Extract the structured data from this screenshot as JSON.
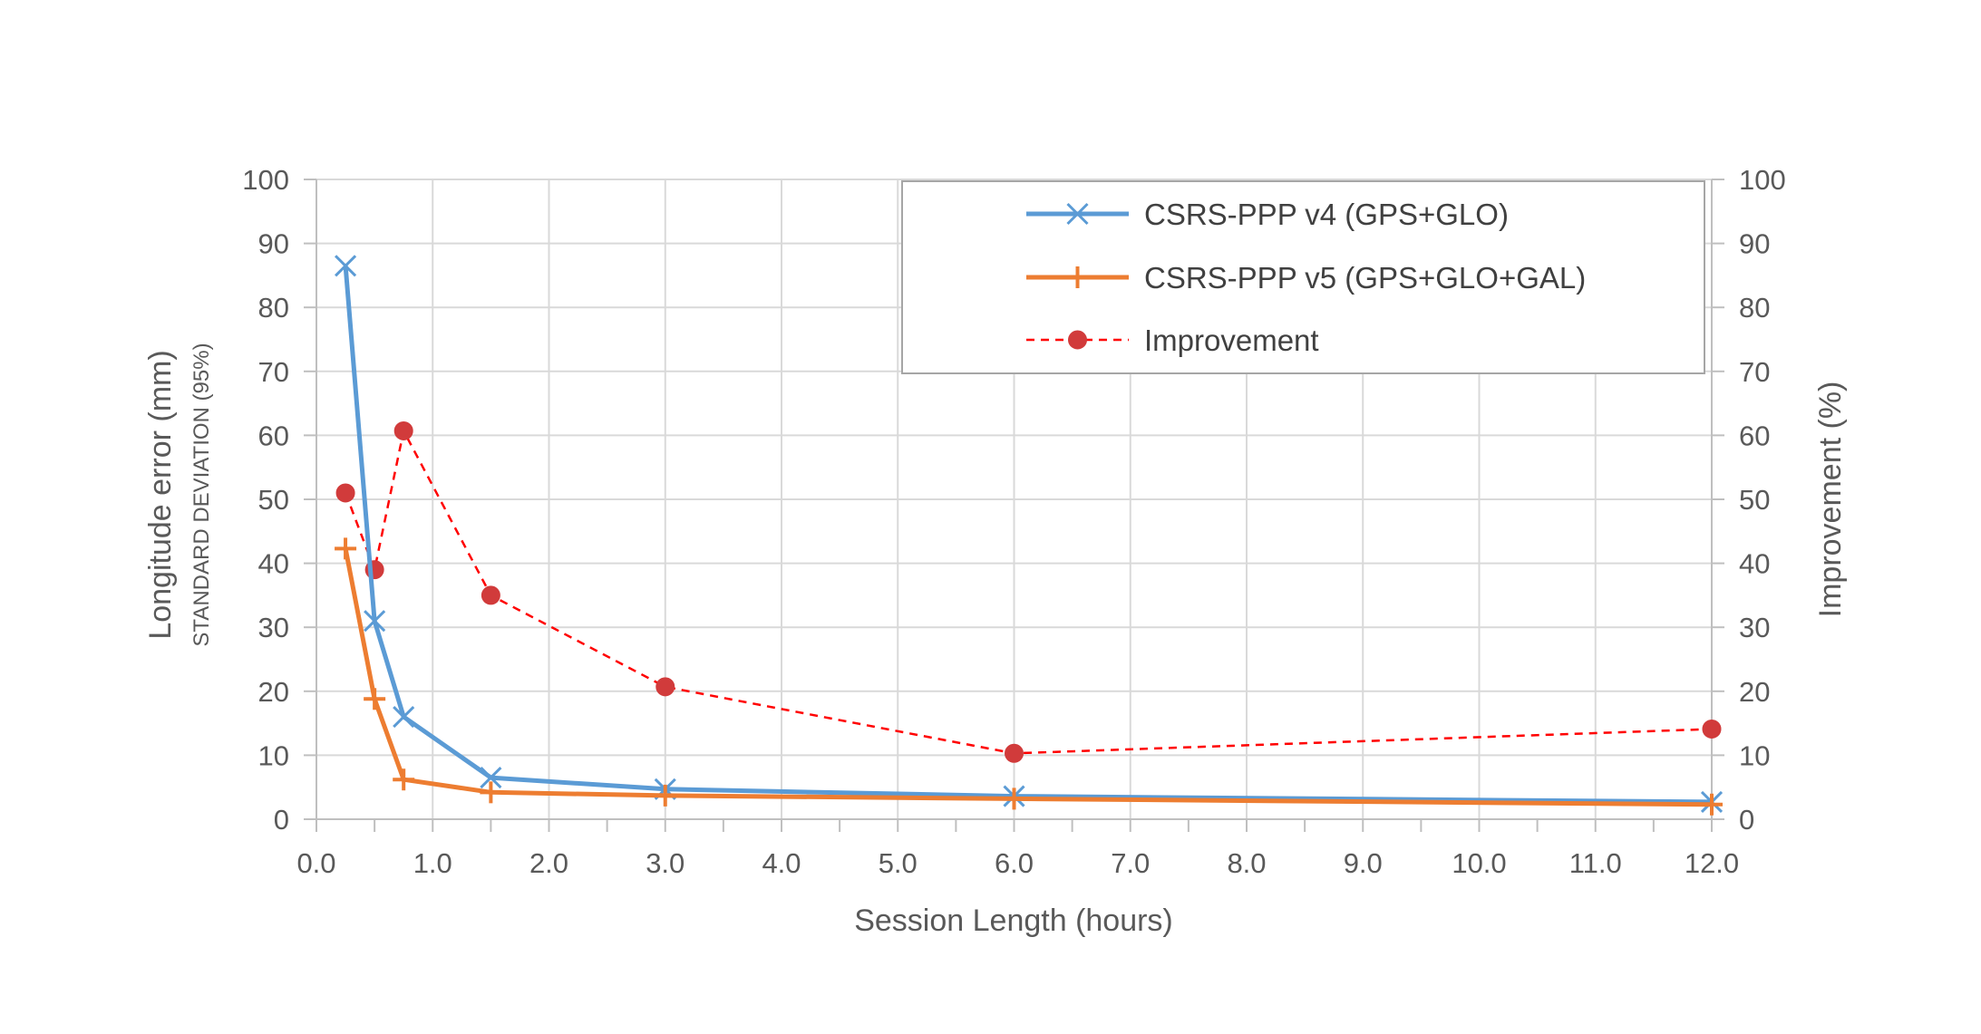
{
  "chart_data": {
    "type": "line",
    "xlabel": "Session Length (hours)",
    "ylabel": "Longitude error (mm)",
    "ylabel_sub": "STANDARD DEVIATION (95%)",
    "y2label": "Improvement (%)",
    "xlim": [
      0,
      12
    ],
    "ylim": [
      0,
      100
    ],
    "y2lim": [
      0,
      100
    ],
    "x_ticks": [
      "0.0",
      "1.0",
      "2.0",
      "3.0",
      "4.0",
      "5.0",
      "6.0",
      "7.0",
      "8.0",
      "9.0",
      "10.0",
      "11.0",
      "12.0"
    ],
    "y_ticks": [
      "0",
      "10",
      "20",
      "30",
      "40",
      "50",
      "60",
      "70",
      "80",
      "90",
      "100"
    ],
    "y2_ticks": [
      "0",
      "10",
      "20",
      "30",
      "40",
      "50",
      "60",
      "70",
      "80",
      "90",
      "100"
    ],
    "grid": true,
    "legend_position": "top-right",
    "series": [
      {
        "name": "CSRS-PPP v4 (GPS+GLO)",
        "axis": "left",
        "color": "#5B9BD5",
        "marker": "x",
        "line": "solid",
        "x": [
          0.25,
          0.5,
          0.75,
          1.5,
          3,
          6,
          12
        ],
        "values": [
          86.5,
          31,
          16,
          6.5,
          4.7,
          3.6,
          2.7
        ]
      },
      {
        "name": "CSRS-PPP v5 (GPS+GLO+GAL)",
        "axis": "left",
        "color": "#ED7D31",
        "marker": "plus",
        "line": "solid",
        "x": [
          0.25,
          0.5,
          0.75,
          1.5,
          3,
          6,
          12
        ],
        "values": [
          42.3,
          18.8,
          6.2,
          4.2,
          3.7,
          3.2,
          2.3
        ]
      },
      {
        "name": "Improvement",
        "axis": "right",
        "color": "#FF0000",
        "marker_color": "#D13B3B",
        "marker": "circle",
        "line": "dashed",
        "x": [
          0.25,
          0.5,
          0.75,
          1.5,
          3,
          6,
          12
        ],
        "values": [
          51,
          39,
          60.7,
          35,
          20.7,
          10.3,
          14.1
        ]
      }
    ]
  }
}
